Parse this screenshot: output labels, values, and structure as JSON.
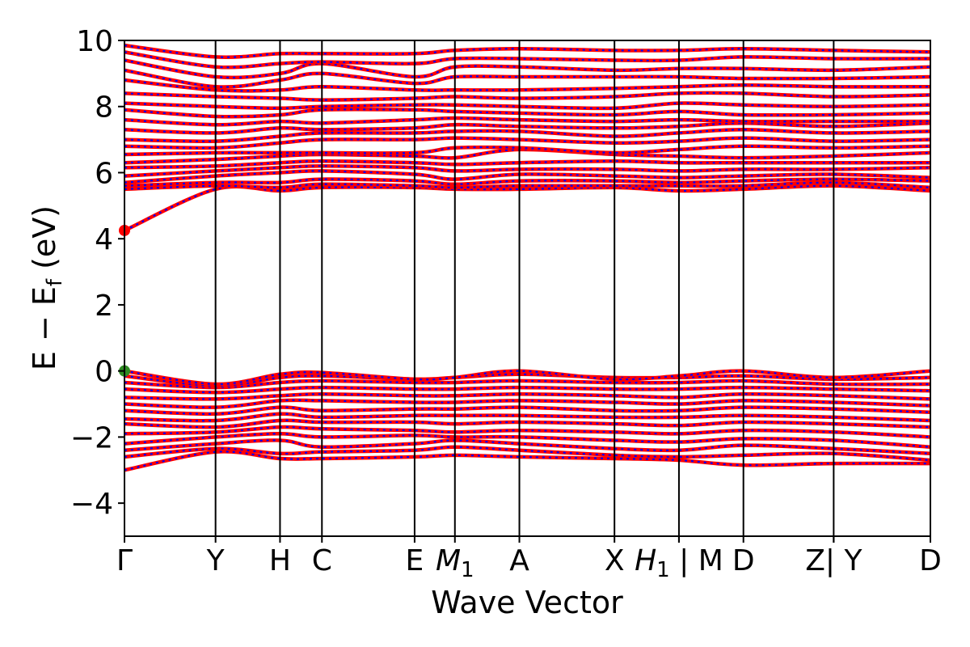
{
  "chart_data": {
    "type": "line",
    "title": "",
    "xlabel": "Wave Vector",
    "ylabel": "E − E",
    "ylabel_sub": "f",
    "ylabel_unit": " (eV)",
    "ylim": [
      -5,
      10
    ],
    "yticks": [
      -4,
      -2,
      0,
      2,
      4,
      6,
      8,
      10
    ],
    "ytick_labels": [
      "−4",
      "−2",
      "0",
      "2",
      "4",
      "6",
      "8",
      "10"
    ],
    "kpath_labels": [
      {
        "text": "Γ",
        "k": 0.0
      },
      {
        "text": "Y",
        "k": 0.113
      },
      {
        "text": "H",
        "k": 0.193
      },
      {
        "text": "C",
        "k": 0.245
      },
      {
        "text": "E",
        "k": 0.36
      },
      {
        "text": "M",
        "sub": "1",
        "k": 0.41
      },
      {
        "text": "A",
        "k": 0.49
      },
      {
        "text": "X",
        "k": 0.608
      },
      {
        "text": "H",
        "sub": "1",
        "k": 0.688
      },
      {
        "text": "| M",
        "k": 0.688
      },
      {
        "text": "D",
        "k": 0.768
      },
      {
        "text": "Z",
        "k": 0.88
      },
      {
        "text": "| Y",
        "k": 0.88
      },
      {
        "text": "D",
        "k": 1.0
      }
    ],
    "kpath_lines": [
      0.113,
      0.193,
      0.245,
      0.36,
      0.41,
      0.49,
      0.608,
      0.688,
      0.768,
      0.88
    ],
    "k_range": [
      0,
      1
    ],
    "series": [
      {
        "color": "#ff0000",
        "style": "solid"
      },
      {
        "color": "#0000ff",
        "style": "dotted"
      }
    ],
    "bands": [
      {
        "e": [
          -3.0,
          -2.45,
          -2.65,
          -2.65,
          -2.6,
          -2.55,
          -2.6,
          -2.65,
          -2.7,
          -2.85,
          -2.8,
          -2.8
        ]
      },
      {
        "e": [
          -2.6,
          -2.35,
          -2.5,
          -2.45,
          -2.4,
          -2.3,
          -2.4,
          -2.55,
          -2.6,
          -2.55,
          -2.5,
          -2.7
        ]
      },
      {
        "e": [
          -2.4,
          -2.2,
          -2.1,
          -2.3,
          -2.2,
          -2.1,
          -2.2,
          -2.35,
          -2.4,
          -2.25,
          -2.35,
          -2.5
        ]
      },
      {
        "e": [
          -2.2,
          -2.0,
          -1.9,
          -2.0,
          -1.95,
          -2.0,
          -2.0,
          -2.1,
          -2.15,
          -2.05,
          -2.1,
          -2.3
        ]
      },
      {
        "e": [
          -1.9,
          -1.85,
          -1.7,
          -1.75,
          -1.8,
          -1.85,
          -1.8,
          -1.85,
          -1.9,
          -1.8,
          -1.85,
          -2.0
        ]
      },
      {
        "e": [
          -1.6,
          -1.7,
          -1.5,
          -1.55,
          -1.55,
          -1.6,
          -1.55,
          -1.6,
          -1.65,
          -1.55,
          -1.6,
          -1.7
        ]
      },
      {
        "e": [
          -1.45,
          -1.5,
          -1.3,
          -1.4,
          -1.35,
          -1.35,
          -1.35,
          -1.4,
          -1.4,
          -1.35,
          -1.4,
          -1.5
        ]
      },
      {
        "e": [
          -1.2,
          -1.3,
          -1.1,
          -1.2,
          -1.15,
          -1.15,
          -1.1,
          -1.2,
          -1.2,
          -1.1,
          -1.15,
          -1.25
        ]
      },
      {
        "e": [
          -1.0,
          -1.1,
          -0.9,
          -0.9,
          -0.95,
          -0.95,
          -0.9,
          -0.95,
          -1.0,
          -0.9,
          -0.95,
          -1.05
        ]
      },
      {
        "e": [
          -0.8,
          -0.85,
          -0.75,
          -0.7,
          -0.75,
          -0.75,
          -0.7,
          -0.75,
          -0.8,
          -0.7,
          -0.75,
          -0.85
        ]
      },
      {
        "e": [
          -0.55,
          -0.65,
          -0.55,
          -0.5,
          -0.55,
          -0.55,
          -0.5,
          -0.55,
          -0.55,
          -0.5,
          -0.55,
          -0.6
        ]
      },
      {
        "e": [
          -0.35,
          -0.5,
          -0.35,
          -0.3,
          -0.35,
          -0.35,
          -0.3,
          -0.35,
          -0.35,
          -0.3,
          -0.4,
          -0.4
        ]
      },
      {
        "e": [
          -0.15,
          -0.45,
          -0.2,
          -0.15,
          -0.25,
          -0.2,
          -0.1,
          -0.2,
          -0.2,
          -0.15,
          -0.25,
          -0.2
        ]
      },
      {
        "e": [
          0.0,
          -0.4,
          -0.1,
          -0.05,
          -0.25,
          -0.2,
          0.0,
          -0.25,
          -0.15,
          0.0,
          -0.2,
          0.0
        ]
      },
      {
        "e": [
          4.25,
          5.5,
          5.45,
          5.55,
          5.55,
          5.5,
          5.5,
          5.55,
          5.45,
          5.5,
          5.6,
          5.45
        ]
      },
      {
        "e": [
          5.5,
          5.6,
          5.55,
          5.65,
          5.6,
          5.55,
          5.6,
          5.6,
          5.6,
          5.6,
          5.7,
          5.55
        ]
      },
      {
        "e": [
          5.6,
          5.7,
          5.7,
          5.8,
          5.75,
          5.65,
          5.75,
          5.75,
          5.7,
          5.75,
          5.8,
          5.75
        ]
      },
      {
        "e": [
          5.7,
          5.9,
          6.0,
          6.05,
          5.95,
          5.8,
          5.95,
          5.9,
          5.85,
          5.9,
          5.95,
          5.85
        ]
      },
      {
        "e": [
          5.9,
          6.05,
          6.15,
          6.2,
          6.15,
          6.05,
          6.1,
          6.1,
          6.05,
          6.1,
          6.1,
          6.15
        ]
      },
      {
        "e": [
          6.15,
          6.2,
          6.3,
          6.35,
          6.3,
          6.25,
          6.3,
          6.35,
          6.3,
          6.3,
          6.3,
          6.3
        ]
      },
      {
        "e": [
          6.3,
          6.4,
          6.5,
          6.55,
          6.5,
          6.45,
          6.7,
          6.55,
          6.5,
          6.45,
          6.5,
          6.6
        ]
      },
      {
        "e": [
          6.55,
          6.6,
          6.6,
          6.6,
          6.6,
          6.75,
          6.75,
          6.6,
          6.7,
          6.8,
          6.75,
          6.8
        ]
      },
      {
        "e": [
          6.8,
          6.75,
          6.9,
          7.0,
          7.0,
          7.05,
          7.0,
          6.9,
          6.95,
          7.05,
          6.95,
          7.0
        ]
      },
      {
        "e": [
          7.0,
          6.95,
          7.1,
          7.2,
          7.2,
          7.25,
          7.25,
          7.1,
          7.2,
          7.3,
          7.2,
          7.25
        ]
      },
      {
        "e": [
          7.3,
          7.2,
          7.35,
          7.3,
          7.35,
          7.45,
          7.4,
          7.35,
          7.4,
          7.5,
          7.4,
          7.5
        ]
      },
      {
        "e": [
          7.6,
          7.45,
          7.55,
          7.5,
          7.6,
          7.65,
          7.6,
          7.55,
          7.6,
          7.55,
          7.55,
          7.55
        ]
      },
      {
        "e": [
          7.9,
          7.7,
          7.75,
          7.9,
          7.9,
          7.85,
          7.8,
          7.75,
          7.85,
          7.75,
          7.75,
          7.8
        ]
      },
      {
        "e": [
          8.1,
          8.0,
          7.95,
          8.0,
          8.05,
          8.05,
          8.0,
          7.95,
          8.1,
          8.05,
          8.0,
          8.05
        ]
      },
      {
        "e": [
          8.4,
          8.3,
          8.25,
          8.2,
          8.25,
          8.3,
          8.25,
          8.3,
          8.4,
          8.4,
          8.3,
          8.35
        ]
      },
      {
        "e": [
          8.8,
          8.5,
          8.5,
          8.6,
          8.5,
          8.5,
          8.5,
          8.55,
          8.6,
          8.65,
          8.6,
          8.6
        ]
      },
      {
        "e": [
          9.1,
          8.6,
          8.8,
          9.0,
          8.7,
          8.9,
          8.9,
          8.9,
          8.9,
          8.85,
          8.85,
          8.9
        ]
      },
      {
        "e": [
          9.4,
          8.9,
          9.0,
          9.3,
          8.9,
          9.2,
          9.2,
          9.1,
          9.15,
          9.15,
          9.1,
          9.2
        ]
      },
      {
        "e": [
          9.65,
          9.2,
          9.3,
          9.35,
          9.3,
          9.45,
          9.45,
          9.4,
          9.4,
          9.5,
          9.45,
          9.45
        ]
      },
      {
        "e": [
          9.85,
          9.5,
          9.6,
          9.6,
          9.6,
          9.7,
          9.75,
          9.7,
          9.7,
          9.75,
          9.7,
          9.65
        ]
      }
    ],
    "markers": [
      {
        "name": "CBM",
        "k": 0.0,
        "e": 4.25,
        "color": "#ff0000"
      },
      {
        "name": "VBM",
        "k": 0.0,
        "e": 0.0,
        "color": "#2e8b22"
      }
    ]
  }
}
